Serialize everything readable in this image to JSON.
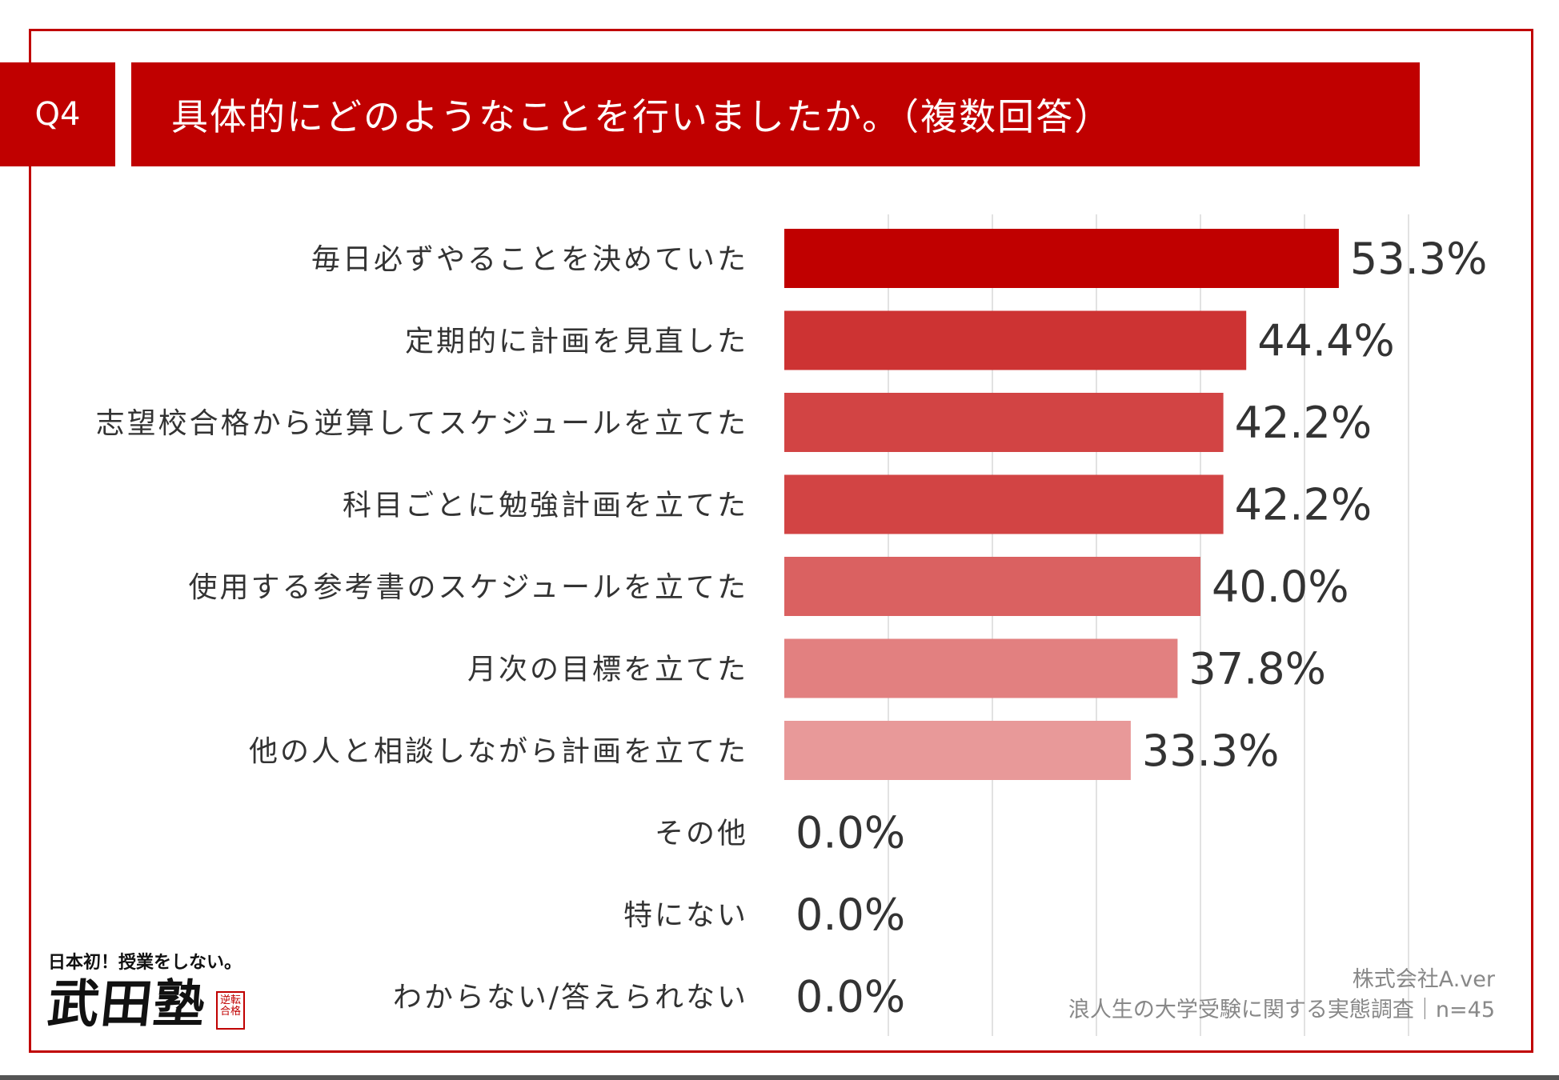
{
  "question": {
    "number": "Q4",
    "title": "具体的にどのようなことを行いましたか。（複数回答）"
  },
  "colors": {
    "brand": "#c00000",
    "text": "#333333",
    "grid": "#d9d9d9",
    "credit": "#888888"
  },
  "chart_data": {
    "type": "bar",
    "orientation": "horizontal",
    "title": "具体的にどのようなことを行いましたか。（複数回答）",
    "categories": [
      "毎日必ずやることを決めていた",
      "定期的に計画を見直した",
      "志望校合格から逆算してスケジュールを立てた",
      "科目ごとに勉強計画を立てた",
      "使用する参考書のスケジュールを立てた",
      "月次の目標を立てた",
      "他の人と相談しながら計画を立てた",
      "その他",
      "特にない",
      "わからない/答えられない"
    ],
    "values": [
      53.3,
      44.4,
      42.2,
      42.2,
      40.0,
      37.8,
      33.3,
      0.0,
      0.0,
      0.0
    ],
    "value_labels": [
      "53.3%",
      "44.4%",
      "42.2%",
      "42.2%",
      "40.0%",
      "37.8%",
      "33.3%",
      "0.0%",
      "0.0%",
      "0.0%"
    ],
    "bar_colors": [
      "#c00000",
      "#cd3333",
      "#d24444",
      "#d24444",
      "#da6161",
      "#e28080",
      "#e89999",
      "#e89999",
      "#e89999",
      "#e89999"
    ],
    "unit": "%",
    "xlim": [
      0,
      60
    ],
    "grid_step": 10,
    "grid": true,
    "legend": "none"
  },
  "logo": {
    "tagline": "日本初！授業をしない。",
    "name": "武田塾",
    "stamp": "逆転合格"
  },
  "footer": {
    "company": "株式会社A.ver",
    "survey": "浪人生の大学受験に関する実態調査｜n=45"
  }
}
